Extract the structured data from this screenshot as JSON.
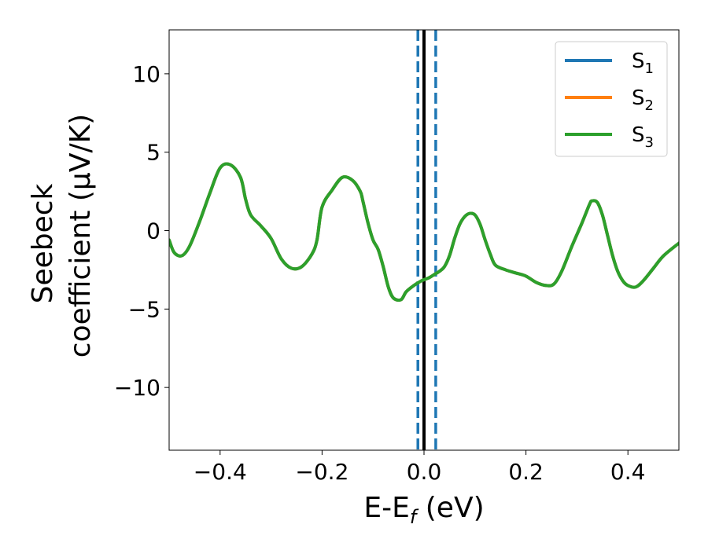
{
  "chart_data": {
    "type": "line",
    "xlabel": "E-E_f (eV)",
    "xlabel_main": "E-E",
    "xlabel_sub": "f",
    "xlabel_tail": " (eV)",
    "ylabel_line1": "Seebeck",
    "ylabel_line2": "coefficient  (μV/K)",
    "xlim": [
      -0.5,
      0.5
    ],
    "ylim": [
      -14,
      12.8
    ],
    "xticks": [
      -0.4,
      -0.2,
      0.0,
      0.2,
      0.4
    ],
    "xtick_labels": [
      "−0.4",
      "−0.2",
      "0.0",
      "0.2",
      "0.4"
    ],
    "yticks": [
      -10,
      -5,
      0,
      5,
      10
    ],
    "ytick_labels": [
      "−10",
      "−5",
      "0",
      "5",
      "10"
    ],
    "grid": false,
    "legend_position": "top-right",
    "vertical_lines": [
      {
        "x": 0.0,
        "style": "solid",
        "color": "#000000"
      },
      {
        "x": -0.012,
        "style": "dashed",
        "color": "#1f77b4"
      },
      {
        "x": 0.023,
        "style": "dashed",
        "color": "#1f77b4"
      }
    ],
    "series": [
      {
        "name": "S1",
        "label_main": "S",
        "label_sub": "1",
        "color": "#1f77b4",
        "x": [
          -0.5,
          -0.49,
          -0.475,
          -0.46,
          -0.44,
          -0.42,
          -0.4,
          -0.38,
          -0.36,
          -0.35,
          -0.34,
          -0.32,
          -0.3,
          -0.28,
          -0.26,
          -0.24,
          -0.22,
          -0.21,
          -0.2,
          -0.18,
          -0.16,
          -0.14,
          -0.125,
          -0.12,
          -0.11,
          -0.1,
          -0.09,
          -0.08,
          -0.07,
          -0.06,
          -0.045,
          -0.035,
          -0.02,
          -0.005,
          0.01,
          0.02,
          0.03,
          0.04,
          0.05,
          0.06,
          0.07,
          0.08,
          0.09,
          0.1,
          0.11,
          0.12,
          0.13,
          0.14,
          0.16,
          0.18,
          0.2,
          0.22,
          0.24,
          0.255,
          0.27,
          0.29,
          0.31,
          0.325,
          0.33,
          0.34,
          0.35,
          0.36,
          0.37,
          0.38,
          0.39,
          0.4,
          0.415,
          0.43,
          0.45,
          0.47,
          0.5
        ],
        "y": [
          -0.6,
          -1.4,
          -1.6,
          -1.0,
          0.6,
          2.4,
          4.0,
          4.2,
          3.4,
          2.0,
          1.0,
          0.3,
          -0.5,
          -1.8,
          -2.4,
          -2.3,
          -1.5,
          -0.6,
          1.5,
          2.6,
          3.4,
          3.2,
          2.5,
          1.9,
          0.5,
          -0.6,
          -1.2,
          -2.3,
          -3.6,
          -4.3,
          -4.4,
          -3.9,
          -3.5,
          -3.2,
          -3.0,
          -2.8,
          -2.6,
          -2.3,
          -1.6,
          -0.5,
          0.4,
          0.9,
          1.1,
          1.0,
          0.4,
          -0.6,
          -1.5,
          -2.2,
          -2.5,
          -2.7,
          -2.9,
          -3.3,
          -3.5,
          -3.4,
          -2.6,
          -1.0,
          0.5,
          1.7,
          1.9,
          1.8,
          1.0,
          -0.3,
          -1.6,
          -2.6,
          -3.2,
          -3.5,
          -3.6,
          -3.2,
          -2.4,
          -1.6,
          -0.8
        ]
      },
      {
        "name": "S2",
        "label_main": "S",
        "label_sub": "2",
        "color": "#ff7f0e",
        "x": [
          -0.5,
          -0.49,
          -0.475,
          -0.46,
          -0.44,
          -0.42,
          -0.4,
          -0.38,
          -0.36,
          -0.35,
          -0.34,
          -0.32,
          -0.3,
          -0.28,
          -0.26,
          -0.24,
          -0.22,
          -0.21,
          -0.2,
          -0.18,
          -0.16,
          -0.14,
          -0.125,
          -0.12,
          -0.11,
          -0.1,
          -0.09,
          -0.08,
          -0.07,
          -0.06,
          -0.045,
          -0.035,
          -0.02,
          -0.005,
          0.01,
          0.02,
          0.03,
          0.04,
          0.05,
          0.06,
          0.07,
          0.08,
          0.09,
          0.1,
          0.11,
          0.12,
          0.13,
          0.14,
          0.16,
          0.18,
          0.2,
          0.22,
          0.24,
          0.255,
          0.27,
          0.29,
          0.31,
          0.325,
          0.33,
          0.34,
          0.35,
          0.36,
          0.37,
          0.38,
          0.39,
          0.4,
          0.415,
          0.43,
          0.45,
          0.47,
          0.5
        ],
        "y": [
          -0.6,
          -1.4,
          -1.6,
          -1.0,
          0.6,
          2.4,
          4.0,
          4.2,
          3.4,
          2.0,
          1.0,
          0.3,
          -0.5,
          -1.8,
          -2.4,
          -2.3,
          -1.5,
          -0.6,
          1.5,
          2.6,
          3.4,
          3.2,
          2.5,
          1.9,
          0.5,
          -0.6,
          -1.2,
          -2.3,
          -3.6,
          -4.3,
          -4.4,
          -3.9,
          -3.5,
          -3.2,
          -3.0,
          -2.8,
          -2.6,
          -2.3,
          -1.6,
          -0.5,
          0.4,
          0.9,
          1.1,
          1.0,
          0.4,
          -0.6,
          -1.5,
          -2.2,
          -2.5,
          -2.7,
          -2.9,
          -3.3,
          -3.5,
          -3.4,
          -2.6,
          -1.0,
          0.5,
          1.7,
          1.9,
          1.8,
          1.0,
          -0.3,
          -1.6,
          -2.6,
          -3.2,
          -3.5,
          -3.6,
          -3.2,
          -2.4,
          -1.6,
          -0.8
        ]
      },
      {
        "name": "S3",
        "label_main": "S",
        "label_sub": "3",
        "color": "#2ca02c",
        "x": [
          -0.5,
          -0.49,
          -0.475,
          -0.46,
          -0.44,
          -0.42,
          -0.4,
          -0.38,
          -0.36,
          -0.35,
          -0.34,
          -0.32,
          -0.3,
          -0.28,
          -0.26,
          -0.24,
          -0.22,
          -0.21,
          -0.2,
          -0.18,
          -0.16,
          -0.14,
          -0.125,
          -0.12,
          -0.11,
          -0.1,
          -0.09,
          -0.08,
          -0.07,
          -0.06,
          -0.045,
          -0.035,
          -0.02,
          -0.005,
          0.01,
          0.02,
          0.03,
          0.04,
          0.05,
          0.06,
          0.07,
          0.08,
          0.09,
          0.1,
          0.11,
          0.12,
          0.13,
          0.14,
          0.16,
          0.18,
          0.2,
          0.22,
          0.24,
          0.255,
          0.27,
          0.29,
          0.31,
          0.325,
          0.33,
          0.34,
          0.35,
          0.36,
          0.37,
          0.38,
          0.39,
          0.4,
          0.415,
          0.43,
          0.45,
          0.47,
          0.5
        ],
        "y": [
          -0.6,
          -1.4,
          -1.6,
          -1.0,
          0.6,
          2.4,
          4.0,
          4.2,
          3.4,
          2.0,
          1.0,
          0.3,
          -0.5,
          -1.8,
          -2.4,
          -2.3,
          -1.5,
          -0.6,
          1.5,
          2.6,
          3.4,
          3.2,
          2.5,
          1.9,
          0.5,
          -0.6,
          -1.2,
          -2.3,
          -3.6,
          -4.3,
          -4.4,
          -3.9,
          -3.5,
          -3.2,
          -3.0,
          -2.8,
          -2.6,
          -2.3,
          -1.6,
          -0.5,
          0.4,
          0.9,
          1.1,
          1.0,
          0.4,
          -0.6,
          -1.5,
          -2.2,
          -2.5,
          -2.7,
          -2.9,
          -3.3,
          -3.5,
          -3.4,
          -2.6,
          -1.0,
          0.5,
          1.7,
          1.9,
          1.8,
          1.0,
          -0.3,
          -1.6,
          -2.6,
          -3.2,
          -3.5,
          -3.6,
          -3.2,
          -2.4,
          -1.6,
          -0.8
        ]
      }
    ]
  }
}
